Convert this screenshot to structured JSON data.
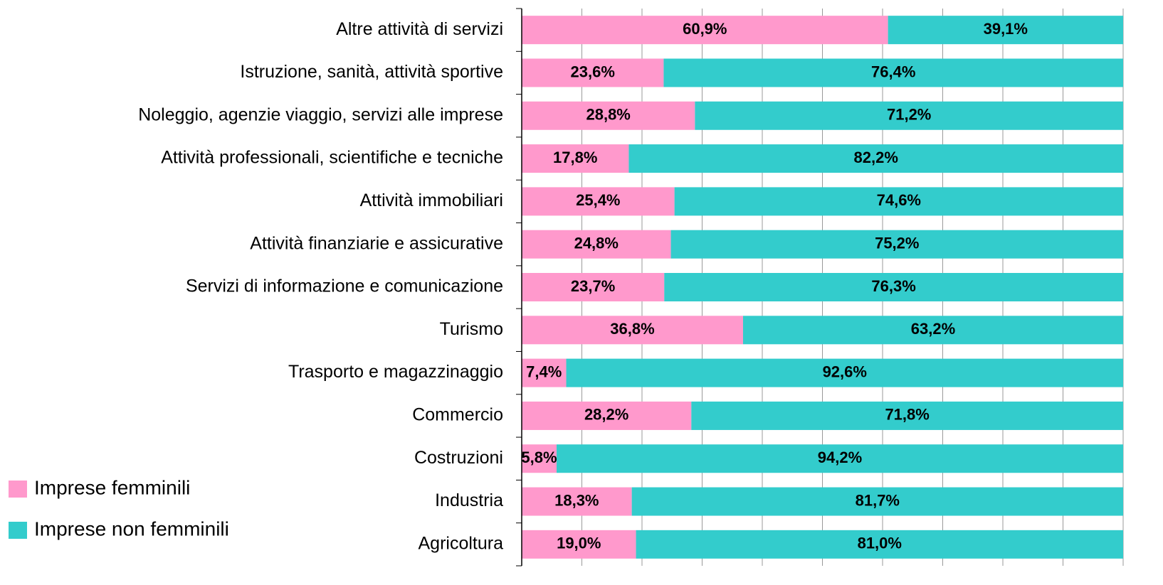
{
  "chart_data": {
    "type": "bar",
    "orientation": "horizontal",
    "stacked": true,
    "categories": [
      "Altre attività di servizi",
      "Istruzione, sanità, attività sportive",
      "Noleggio, agenzie viaggio, servizi alle imprese",
      "Attività professionali, scientifiche e tecniche",
      "Attività immobiliari",
      "Attività finanziarie e assicurative",
      "Servizi di informazione e comunicazione",
      "Turismo",
      "Trasporto e magazzinaggio",
      "Commercio",
      "Costruzioni",
      "Industria",
      "Agricoltura"
    ],
    "series": [
      {
        "name": "Imprese femminili",
        "color": "#ff99cc",
        "values": [
          60.9,
          23.6,
          28.8,
          17.8,
          25.4,
          24.8,
          23.7,
          36.8,
          7.4,
          28.2,
          5.8,
          18.3,
          19.0
        ],
        "value_labels": [
          "60,9%",
          "23,6%",
          "28,8%",
          "17,8%",
          "25,4%",
          "24,8%",
          "23,7%",
          "36,8%",
          "7,4%",
          "28,2%",
          "5,8%",
          "18,3%",
          "19,0%"
        ]
      },
      {
        "name": "Imprese non femminili",
        "color": "#33cccc",
        "values": [
          39.1,
          76.4,
          71.2,
          82.2,
          74.6,
          75.2,
          76.3,
          63.2,
          92.6,
          71.8,
          94.2,
          81.7,
          81.0
        ],
        "value_labels": [
          "39,1%",
          "76,4%",
          "71,2%",
          "82,2%",
          "74,6%",
          "75,2%",
          "76,3%",
          "63,2%",
          "92,6%",
          "71,8%",
          "94,2%",
          "81,7%",
          "81,0%"
        ]
      }
    ],
    "xlim": [
      0,
      100
    ],
    "xticks": [
      0,
      10,
      20,
      30,
      40,
      50,
      60,
      70,
      80,
      90,
      100
    ],
    "grid": true,
    "legend": "bottom-left"
  }
}
